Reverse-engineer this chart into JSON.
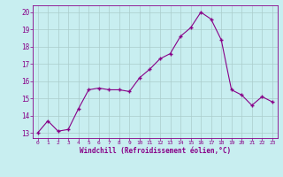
{
  "x": [
    0,
    1,
    2,
    3,
    4,
    5,
    6,
    7,
    8,
    9,
    10,
    11,
    12,
    13,
    14,
    15,
    16,
    17,
    18,
    19,
    20,
    21,
    22,
    23
  ],
  "y": [
    13.0,
    13.7,
    13.1,
    13.2,
    14.4,
    15.5,
    15.6,
    15.5,
    15.5,
    15.4,
    16.2,
    16.7,
    17.3,
    17.6,
    18.6,
    19.1,
    20.0,
    19.6,
    18.4,
    15.5,
    15.2,
    14.6,
    15.1,
    14.8
  ],
  "line_color": "#880088",
  "marker": "+",
  "marker_size": 3.5,
  "bg_color": "#c8eef0",
  "grid_color": "#aacccc",
  "xlabel": "Windchill (Refroidissement éolien,°C)",
  "tick_color": "#880088",
  "xlim": [
    -0.5,
    23.5
  ],
  "ylim": [
    12.7,
    20.4
  ],
  "yticks": [
    13,
    14,
    15,
    16,
    17,
    18,
    19,
    20
  ],
  "xticks": [
    0,
    1,
    2,
    3,
    4,
    5,
    6,
    7,
    8,
    9,
    10,
    11,
    12,
    13,
    14,
    15,
    16,
    17,
    18,
    19,
    20,
    21,
    22,
    23
  ]
}
